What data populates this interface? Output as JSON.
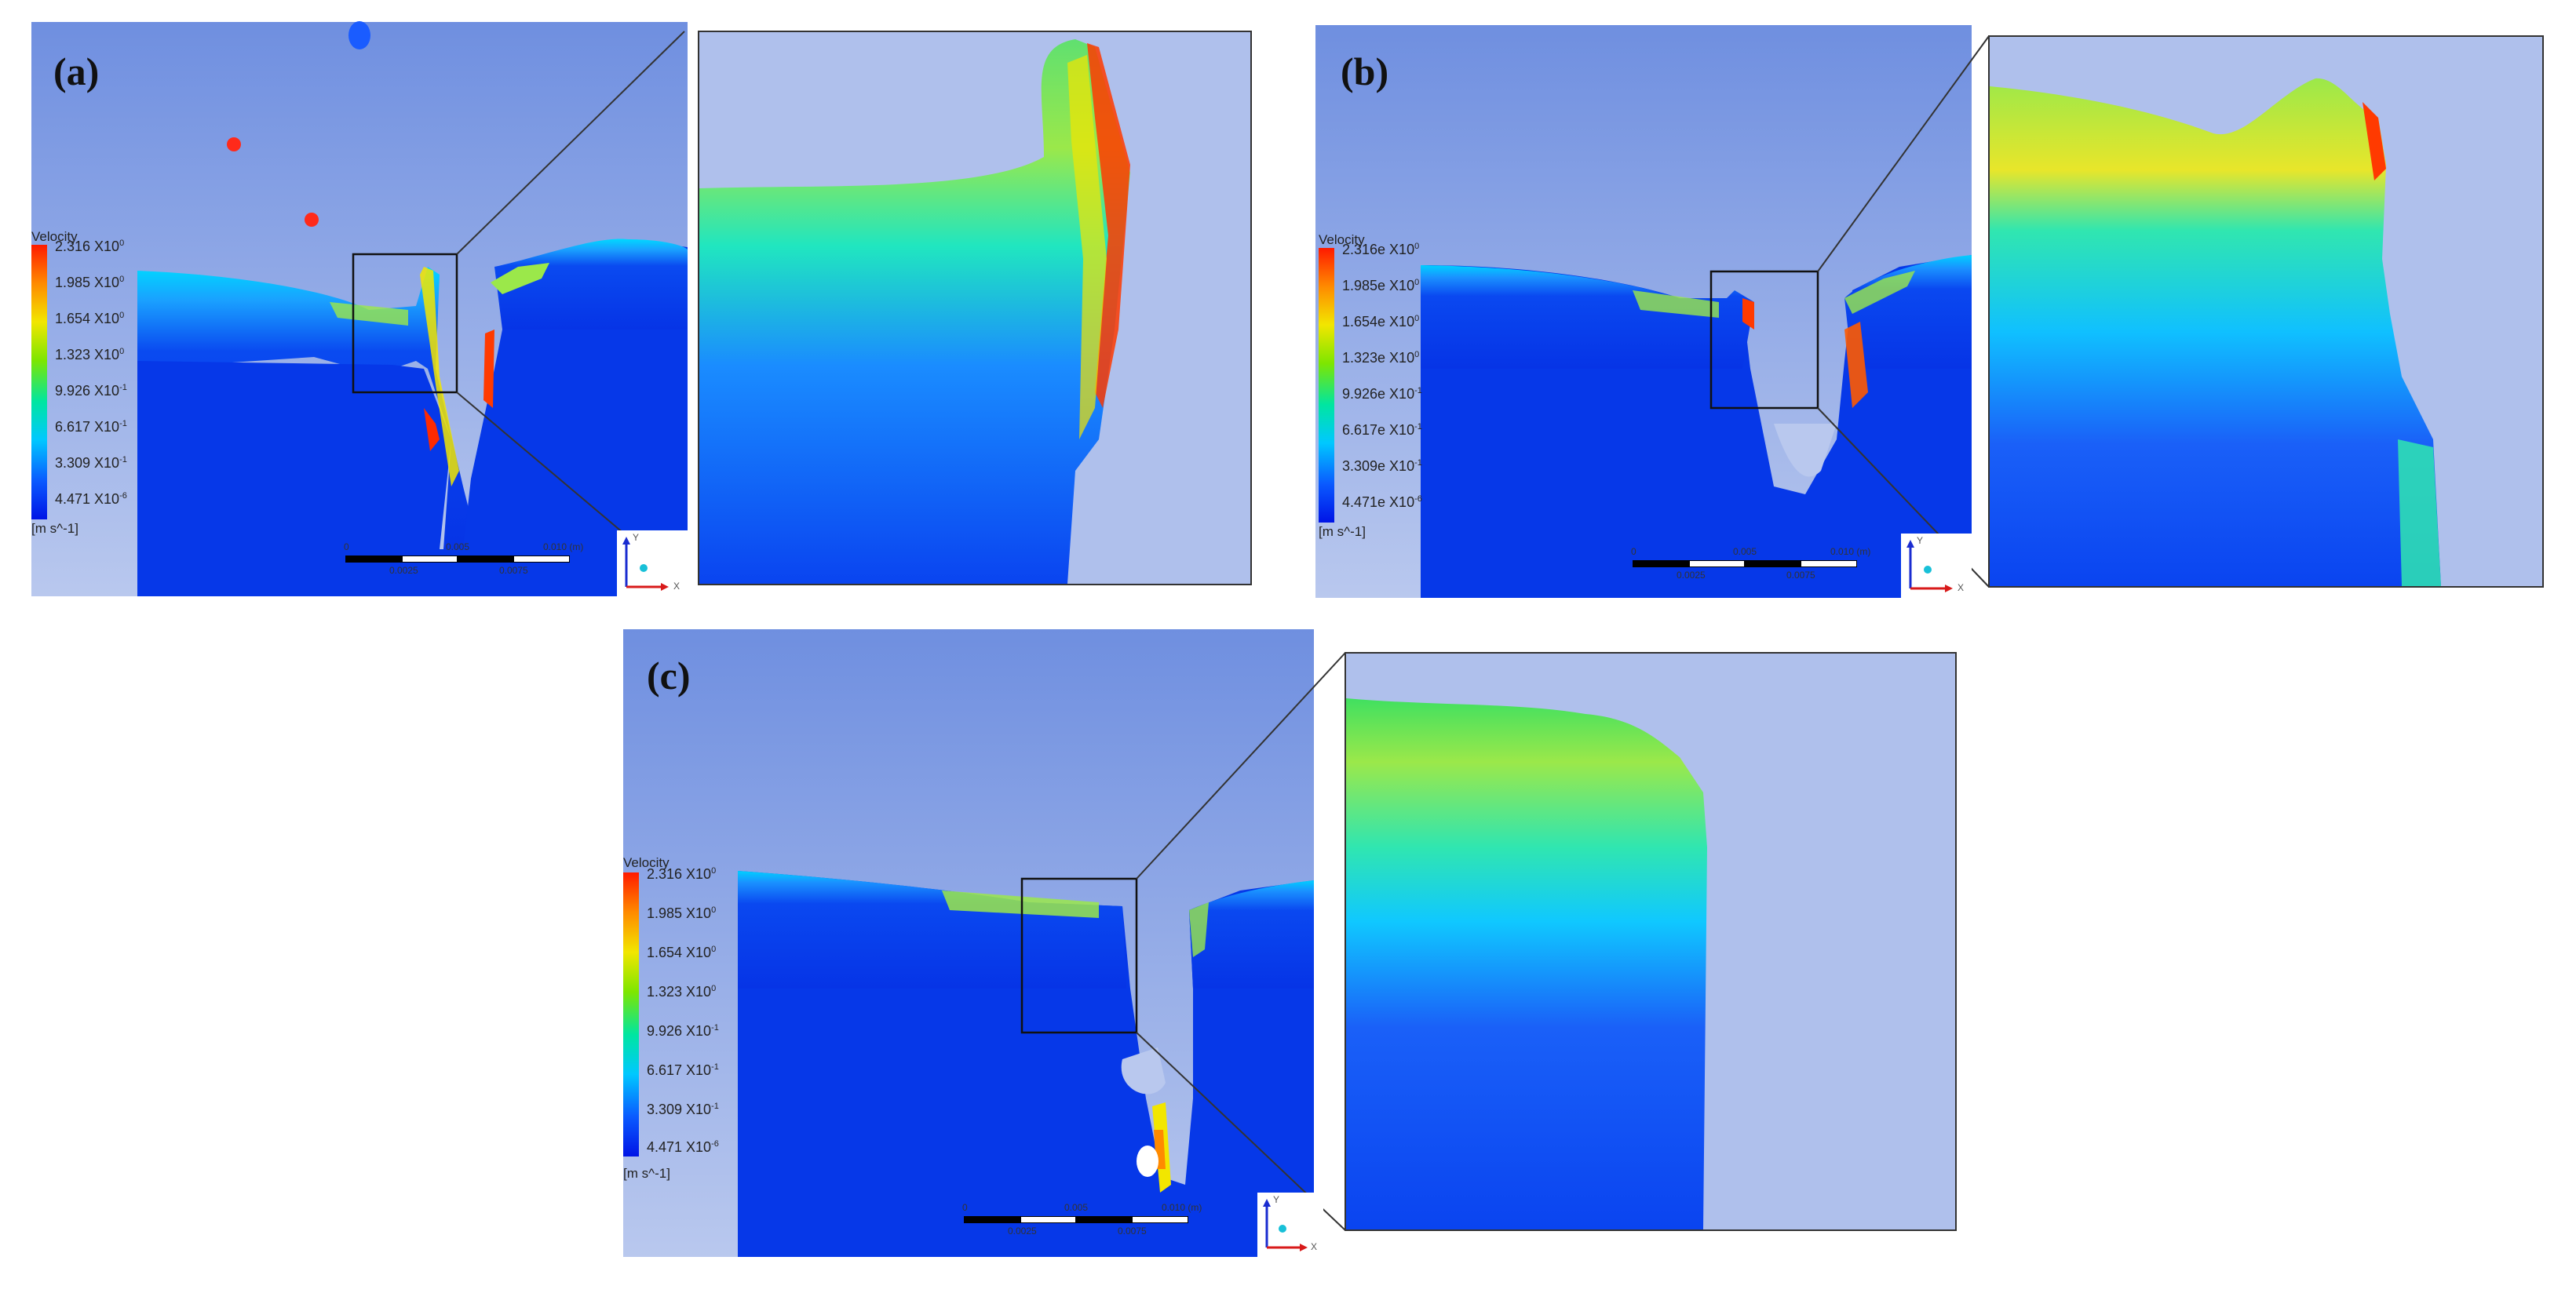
{
  "panels": [
    {
      "label": "(a)"
    },
    {
      "label": "(b)"
    },
    {
      "label": "(c)"
    }
  ],
  "legend": {
    "title": "Velocity",
    "unit": "[m s^-1]",
    "ticks_a": [
      {
        "m": "2.316 X10",
        "e": "0"
      },
      {
        "m": "1.985 X10",
        "e": "0"
      },
      {
        "m": "1.654 X10",
        "e": "0"
      },
      {
        "m": "1.323 X10",
        "e": "0"
      },
      {
        "m": "9.926 X10",
        "e": "-1"
      },
      {
        "m": "6.617 X10",
        "e": "-1"
      },
      {
        "m": "3.309 X10",
        "e": "-1"
      },
      {
        "m": "4.471 X10",
        "e": "-6"
      }
    ],
    "ticks_b": [
      {
        "m": "2.316e X10",
        "e": "0"
      },
      {
        "m": "1.985e X10",
        "e": "0"
      },
      {
        "m": "1.654e X10",
        "e": "0"
      },
      {
        "m": "1.323e X10",
        "e": "0"
      },
      {
        "m": "9.926e X10",
        "e": "-1"
      },
      {
        "m": "6.617e X10",
        "e": "-1"
      },
      {
        "m": "3.309e X10",
        "e": "-1"
      },
      {
        "m": "4.471e X10",
        "e": "-6"
      }
    ]
  },
  "scale_bar": {
    "labels": [
      "0",
      "0.005",
      "0.010 (m)",
      "0.0025",
      "0.0075"
    ]
  },
  "axes": {
    "y": "Y",
    "x": "X"
  },
  "colors": {
    "sky_top": "#6f8fe0",
    "sky_bottom": "#b9c8ee",
    "fluid": "#0a3cf0"
  }
}
